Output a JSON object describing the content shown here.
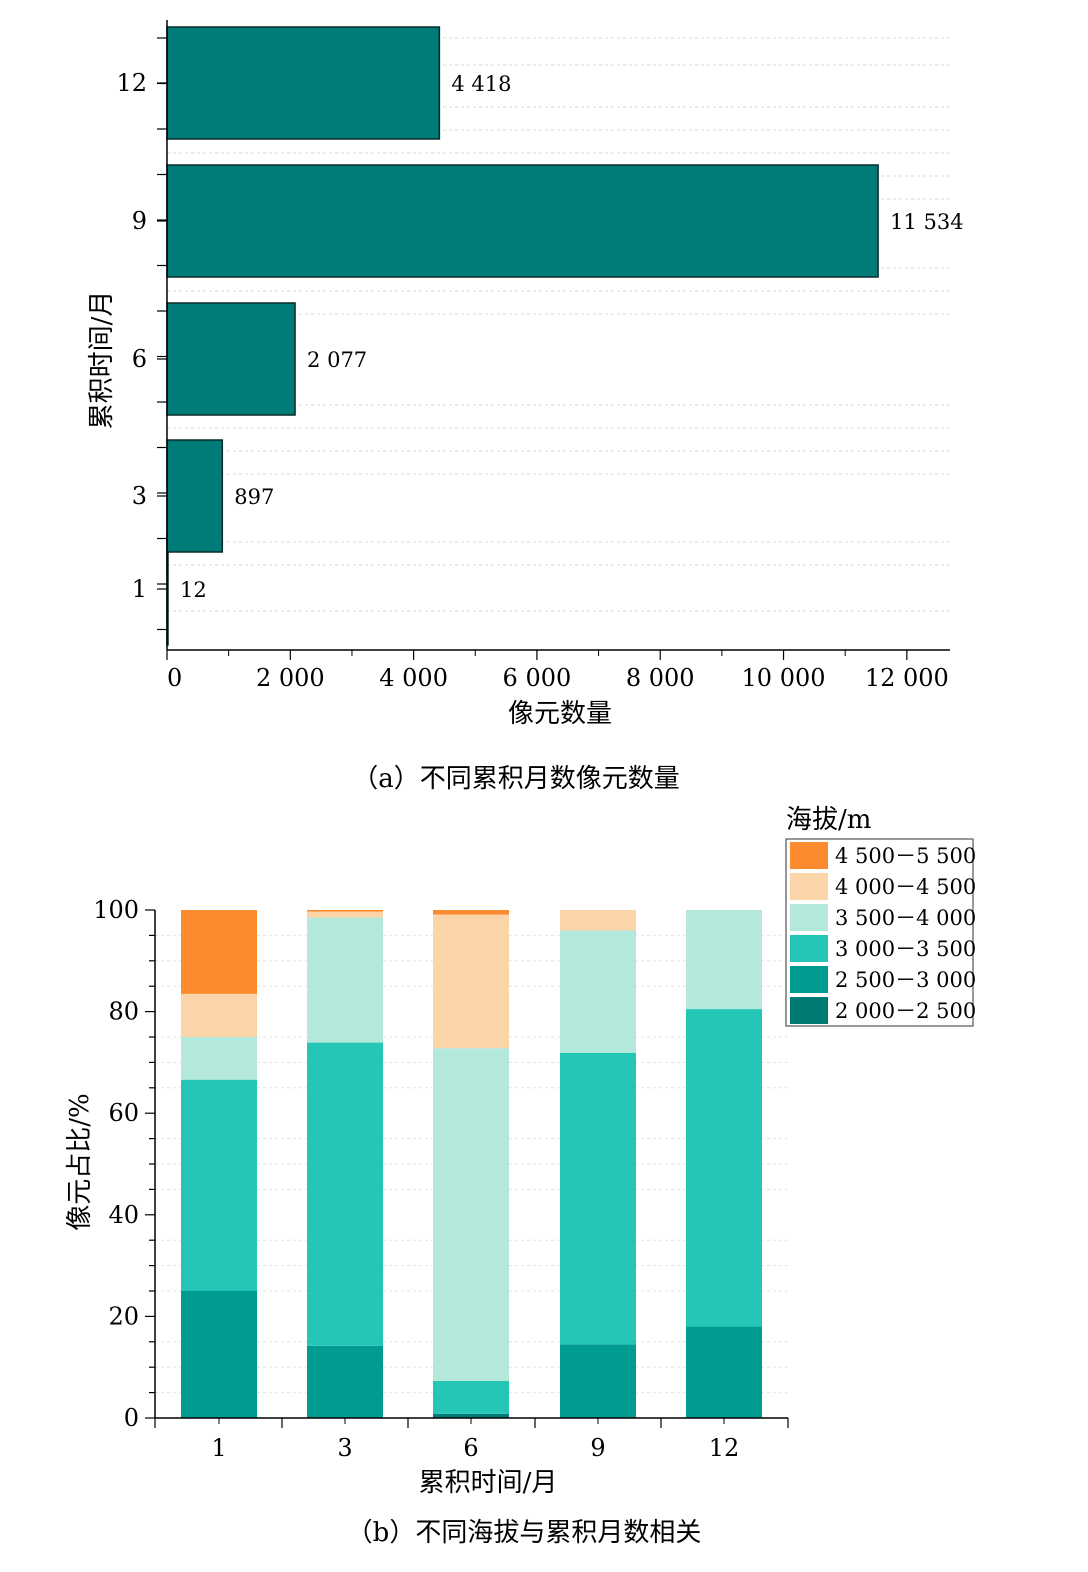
{
  "chart_data": [
    {
      "type": "bar",
      "orientation": "horizontal",
      "categories": [
        "1",
        "3",
        "6",
        "9",
        "12"
      ],
      "values": [
        12,
        897,
        2077,
        11534,
        4418
      ],
      "value_labels": [
        "12",
        "897",
        "2 077",
        "11 534",
        "4 418"
      ],
      "xlabel": "像元数量",
      "ylabel": "累积时间/月",
      "xlim": [
        0,
        12700
      ],
      "xticks": [
        0,
        2000,
        4000,
        6000,
        8000,
        10000,
        12000
      ],
      "xtick_labels": [
        "0",
        "2 000",
        "4 000",
        "6 000",
        "8 000",
        "10 000",
        "12 000"
      ],
      "grid": "horizontal dashed",
      "bar_color": "#007C78",
      "caption": "（a）不同累积月数像元数量"
    },
    {
      "type": "bar",
      "stacked": true,
      "categories": [
        "1",
        "3",
        "6",
        "9",
        "12"
      ],
      "xlabel": "累积时间/月",
      "ylabel": "像元占比/%",
      "ylim": [
        0,
        100
      ],
      "yticks": [
        0,
        20,
        40,
        60,
        80,
        100
      ],
      "grid": "horizontal dashed",
      "legend": {
        "title": "海拔/m",
        "position": "top-right outside"
      },
      "series": [
        {
          "name": "2 000－2 500",
          "color": "#007A74",
          "values": [
            0,
            0,
            0.8,
            0,
            0
          ]
        },
        {
          "name": "2 500－3 000",
          "color": "#009B91",
          "values": [
            25,
            14.2,
            0,
            14.5,
            18
          ]
        },
        {
          "name": "3 000－3 500",
          "color": "#26C6B6",
          "values": [
            41.6,
            59.7,
            6.5,
            57.4,
            62.5
          ]
        },
        {
          "name": "3 500－4 000",
          "color": "#B3E8DA",
          "values": [
            8.4,
            24.6,
            65.5,
            24.1,
            19.5
          ]
        },
        {
          "name": "4 000－4 500",
          "color": "#FCD4A9",
          "values": [
            8.5,
            1.2,
            26.3,
            4,
            0
          ]
        },
        {
          "name": "4 500－5 500",
          "color": "#FA8B2E",
          "values": [
            16.5,
            0.3,
            0.9,
            0,
            0
          ]
        }
      ],
      "caption": "（b）不同海拔与累积月数相关"
    }
  ]
}
